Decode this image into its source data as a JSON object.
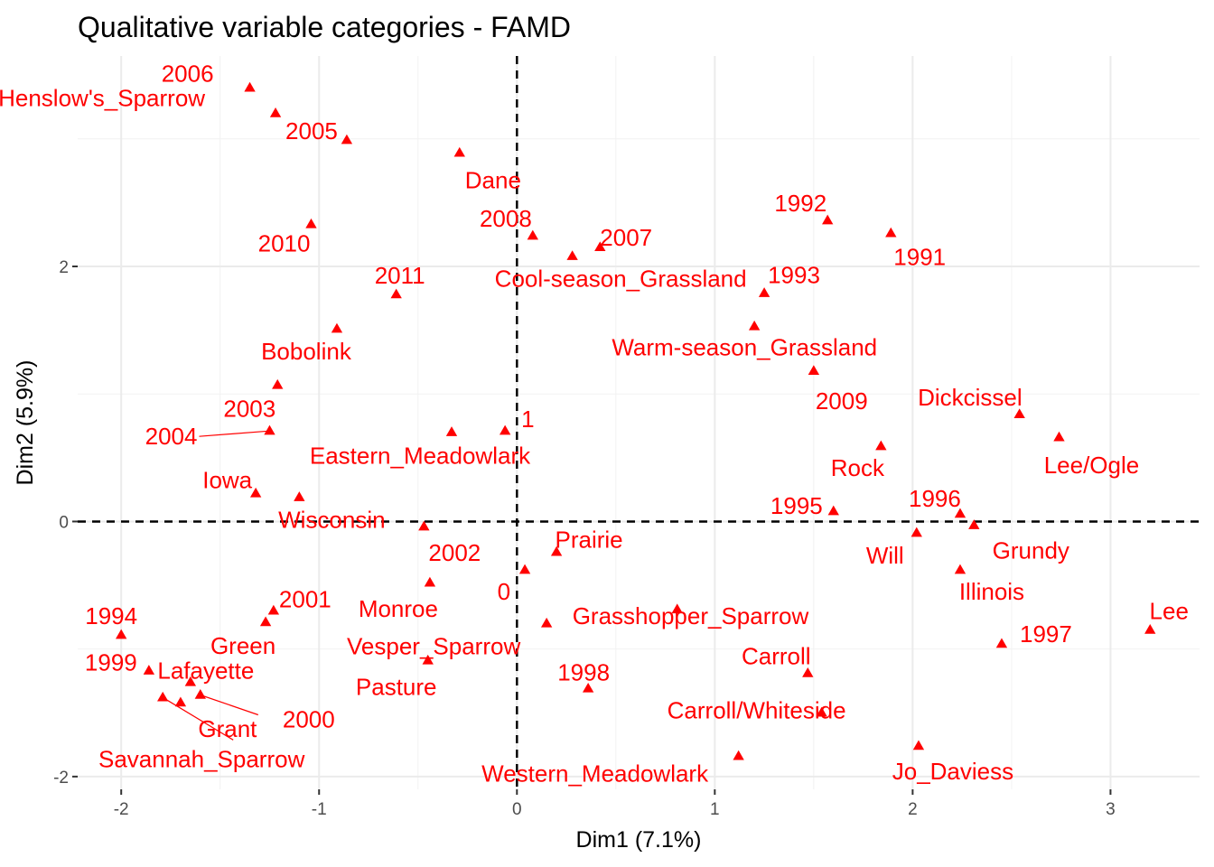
{
  "chart_data": {
    "type": "scatter",
    "title": "Qualitative variable categories - FAMD",
    "xlabel": "Dim1 (7.1%)",
    "ylabel": "Dim2 (5.9%)",
    "xlim": [
      -2.22,
      3.45
    ],
    "ylim": [
      -2.1,
      3.65
    ],
    "xticks": [
      -2,
      -1,
      0,
      1,
      2,
      3
    ],
    "xtick_labels": [
      "-2",
      "-1",
      "0",
      "1",
      "2",
      "3"
    ],
    "yticks": [
      -2,
      0,
      2
    ],
    "ytick_labels": [
      "-2",
      "0",
      "2"
    ],
    "grid": true,
    "reference_lines": {
      "x": 0,
      "y": 0,
      "style": "dashed"
    },
    "marker": "triangle",
    "color": "#ff0000",
    "points": [
      {
        "label": "2006",
        "x": -1.35,
        "y": 3.4
      },
      {
        "label": "2005",
        "x": -0.86,
        "y": 2.99
      },
      {
        "label": "Henslow's_Sparrow",
        "x": -1.22,
        "y": 3.2
      },
      {
        "label": "Dane",
        "x": -0.29,
        "y": 2.89
      },
      {
        "label": "2010",
        "x": -1.04,
        "y": 2.33
      },
      {
        "label": "2008",
        "x": 0.08,
        "y": 2.24
      },
      {
        "label": "2007",
        "x": 0.42,
        "y": 2.15
      },
      {
        "label": "Cool-season_Grassland",
        "x": 0.28,
        "y": 2.08
      },
      {
        "label": "1992",
        "x": 1.57,
        "y": 2.36
      },
      {
        "label": "1991",
        "x": 1.89,
        "y": 2.26
      },
      {
        "label": "2011",
        "x": -0.61,
        "y": 1.78
      },
      {
        "label": "1993",
        "x": 1.25,
        "y": 1.79
      },
      {
        "label": "Warm-season_Grassland",
        "x": 1.2,
        "y": 1.53
      },
      {
        "label": "Bobolink",
        "x": -0.91,
        "y": 1.51
      },
      {
        "label": "2009",
        "x": 1.5,
        "y": 1.18
      },
      {
        "label": "2003",
        "x": -1.21,
        "y": 1.07
      },
      {
        "label": "Dickcissel",
        "x": 2.54,
        "y": 0.84
      },
      {
        "label": "2004",
        "x": -1.25,
        "y": 0.71
      },
      {
        "label": "Eastern_Meadowlark",
        "x": -0.33,
        "y": 0.7
      },
      {
        "label": "1",
        "x": -0.06,
        "y": 0.71
      },
      {
        "label": "Lee/Ogle",
        "x": 2.74,
        "y": 0.66
      },
      {
        "label": "Rock",
        "x": 1.84,
        "y": 0.59
      },
      {
        "label": "Iowa",
        "x": -1.32,
        "y": 0.22
      },
      {
        "label": "Wisconsin",
        "x": -1.1,
        "y": 0.19
      },
      {
        "label": "1995",
        "x": 1.6,
        "y": 0.08
      },
      {
        "label": "1996",
        "x": 2.24,
        "y": 0.06
      },
      {
        "label": "Grundy",
        "x": 2.31,
        "y": -0.03
      },
      {
        "label": "2002",
        "x": -0.47,
        "y": -0.04
      },
      {
        "label": "Will",
        "x": 2.02,
        "y": -0.09
      },
      {
        "label": "Prairie",
        "x": 0.2,
        "y": -0.24
      },
      {
        "label": "Illinois",
        "x": 2.24,
        "y": -0.38
      },
      {
        "label": "0",
        "x": 0.04,
        "y": -0.38
      },
      {
        "label": "Monroe",
        "x": -0.44,
        "y": -0.48
      },
      {
        "label": "Grasshopper_Sparrow",
        "x": 0.81,
        "y": -0.69
      },
      {
        "label": "2001",
        "x": -1.23,
        "y": -0.7
      },
      {
        "label": "1994",
        "x": -2.0,
        "y": -0.89
      },
      {
        "label": "Lee",
        "x": 3.2,
        "y": -0.85
      },
      {
        "label": "Green",
        "x": -1.27,
        "y": -0.79
      },
      {
        "label": "Vesper_Sparrow",
        "x": 0.15,
        "y": -0.8
      },
      {
        "label": "1997",
        "x": 2.45,
        "y": -0.96
      },
      {
        "label": "Pasture",
        "x": -0.45,
        "y": -1.09
      },
      {
        "label": "Lafayette",
        "x": -1.65,
        "y": -1.26
      },
      {
        "label": "1999",
        "x": -1.86,
        "y": -1.17
      },
      {
        "label": "Carroll",
        "x": 1.47,
        "y": -1.19
      },
      {
        "label": "1998",
        "x": 0.36,
        "y": -1.31
      },
      {
        "label": "Grant",
        "x": -1.7,
        "y": -1.42
      },
      {
        "label": "2000",
        "x": -1.6,
        "y": -1.36
      },
      {
        "label": "Savannah_Sparrow",
        "x": -1.79,
        "y": -1.38
      },
      {
        "label": "Carroll/Whiteside",
        "x": 1.54,
        "y": -1.5
      },
      {
        "label": "Jo_Daviess",
        "x": 2.03,
        "y": -1.76
      },
      {
        "label": "Western_Meadowlark",
        "x": 1.12,
        "y": -1.84
      }
    ]
  }
}
